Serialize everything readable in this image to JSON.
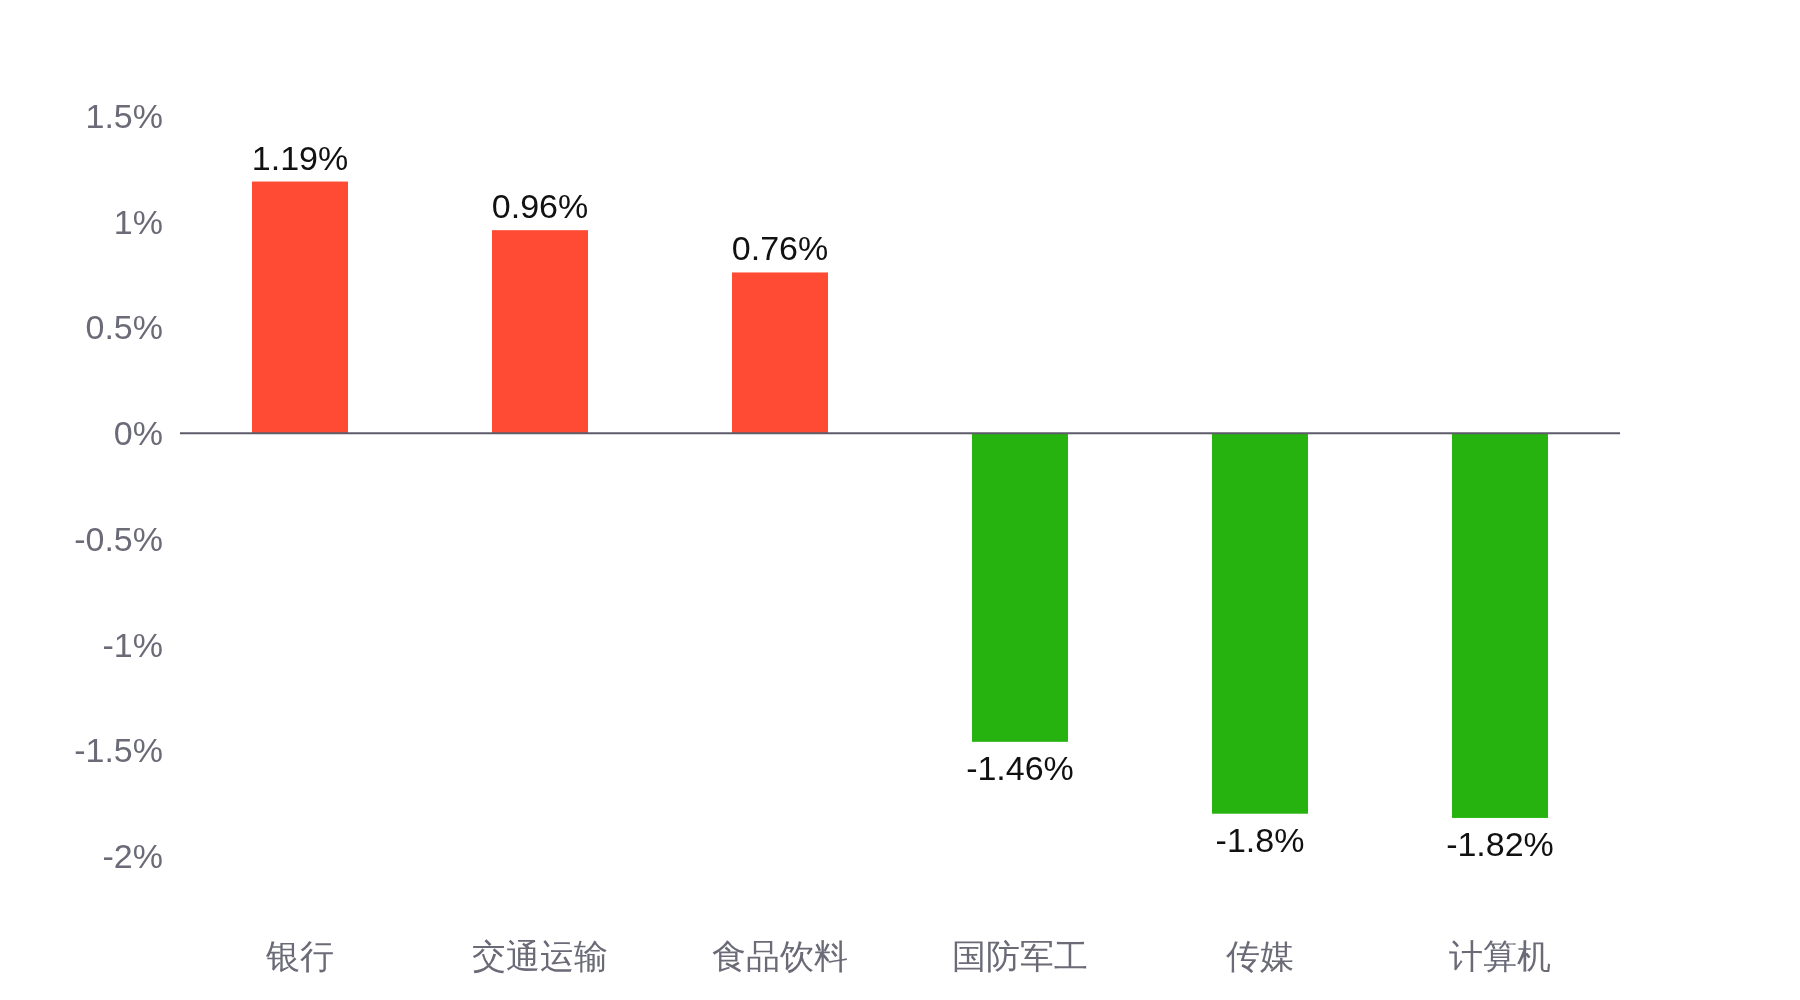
{
  "chart_data": {
    "type": "bar",
    "categories": [
      "银行",
      "交通运输",
      "食品饮料",
      "国防军工",
      "传媒",
      "计算机"
    ],
    "values": [
      1.19,
      0.96,
      0.76,
      -1.46,
      -1.8,
      -1.82
    ],
    "colors": [
      "#ff4b33",
      "#ff4b33",
      "#ff4b33",
      "#27b30f",
      "#27b30f",
      "#27b30f"
    ],
    "value_labels": [
      "1.19%",
      "0.96%",
      "0.76%",
      "-1.46%",
      "-1.8%",
      "-1.82%"
    ],
    "ylim": [
      -2,
      1.5
    ],
    "yticks": [
      {
        "value": 1.5,
        "label": "1.5%"
      },
      {
        "value": 1,
        "label": "1%"
      },
      {
        "value": 0.5,
        "label": "0.5%"
      },
      {
        "value": 0,
        "label": "0%"
      },
      {
        "value": -0.5,
        "label": "-0.5%"
      },
      {
        "value": -1,
        "label": "-1%"
      },
      {
        "value": -1.5,
        "label": "-1.5%"
      },
      {
        "value": -2,
        "label": "-2%"
      }
    ]
  }
}
